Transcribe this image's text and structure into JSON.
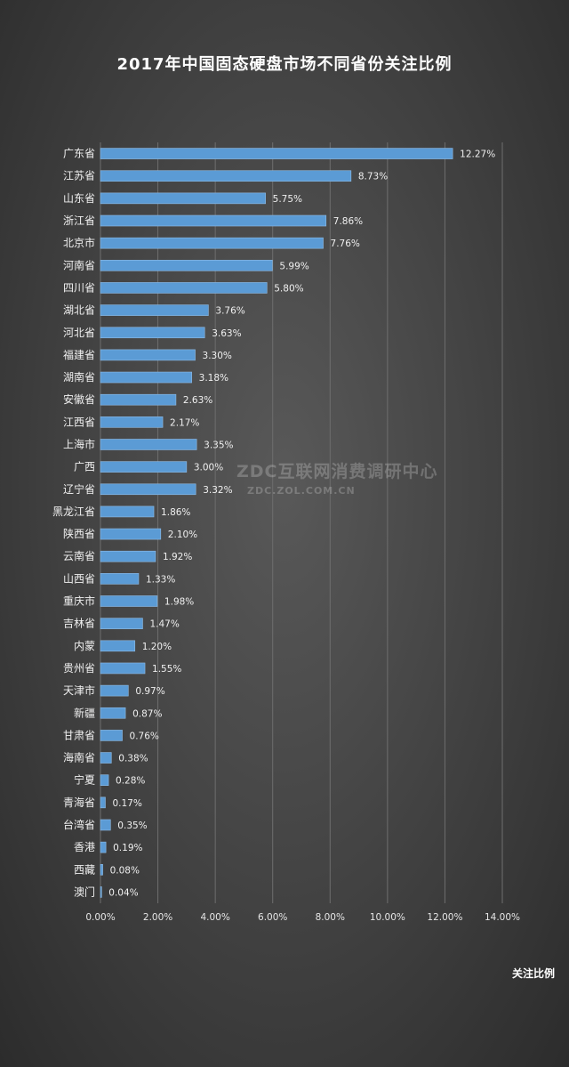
{
  "chart_data": {
    "type": "bar",
    "orientation": "horizontal",
    "title": "2017年中国固态硬盘市场不同省份关注比例",
    "categories": [
      "广东省",
      "江苏省",
      "山东省",
      "浙江省",
      "北京市",
      "河南省",
      "四川省",
      "湖北省",
      "河北省",
      "福建省",
      "湖南省",
      "安徽省",
      "江西省",
      "上海市",
      "广西",
      "辽宁省",
      "黑龙江省",
      "陕西省",
      "云南省",
      "山西省",
      "重庆市",
      "吉林省",
      "内蒙",
      "贵州省",
      "天津市",
      "新疆",
      "甘肃省",
      "海南省",
      "宁夏",
      "青海省",
      "台湾省",
      "香港",
      "西藏",
      "澳门"
    ],
    "series": [
      {
        "name": "关注比例",
        "values": [
          12.27,
          8.73,
          5.75,
          7.86,
          7.76,
          5.99,
          5.8,
          3.76,
          3.63,
          3.3,
          3.18,
          2.63,
          2.17,
          3.35,
          3.0,
          3.32,
          1.86,
          2.1,
          1.92,
          1.33,
          1.98,
          1.47,
          1.2,
          1.55,
          0.97,
          0.87,
          0.76,
          0.38,
          0.28,
          0.17,
          0.35,
          0.19,
          0.08,
          0.04
        ],
        "labels": [
          "12.27%",
          "8.73%",
          "5.75%",
          "7.86%",
          "7.76%",
          "5.99%",
          "5.80%",
          "3.76%",
          "3.63%",
          "3.30%",
          "3.18%",
          "2.63%",
          "2.17%",
          "3.35%",
          "3.00%",
          "3.32%",
          "1.86%",
          "2.10%",
          "1.92%",
          "1.33%",
          "1.98%",
          "1.47%",
          "1.20%",
          "1.55%",
          "0.97%",
          "0.87%",
          "0.76%",
          "0.38%",
          "0.28%",
          "0.17%",
          "0.35%",
          "0.19%",
          "0.08%",
          "0.04%"
        ]
      }
    ],
    "xlim": [
      0,
      14
    ],
    "xticks": [
      "0.00%",
      "2.00%",
      "4.00%",
      "6.00%",
      "8.00%",
      "10.00%",
      "12.00%",
      "14.00%"
    ],
    "grid": true,
    "legend_position": "bottom-right",
    "bar_color": "#5b9bd5"
  },
  "watermark": {
    "text": "ZDC互联网消费调研中心",
    "url": "ZDC.ZOL.COM.CN"
  }
}
